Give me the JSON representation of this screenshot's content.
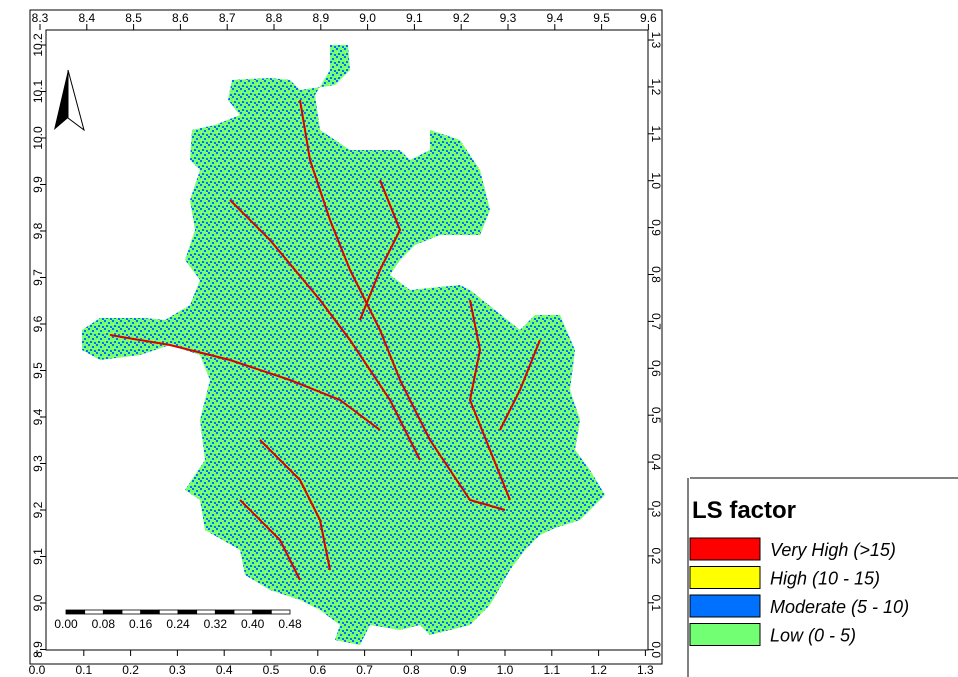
{
  "axes": {
    "top": [
      "8.3",
      "8.4",
      "8.5",
      "8.6",
      "8.7",
      "8.8",
      "8.9",
      "9.0",
      "9.1",
      "9.2",
      "9.3",
      "9.4",
      "9.5",
      "9.6"
    ],
    "bottom": [
      "0.0",
      "0.1",
      "0.2",
      "0.3",
      "0.4",
      "0.5",
      "0.6",
      "0.7",
      "0.8",
      "0.9",
      "1.0",
      "1.1",
      "1.2",
      "1.3"
    ],
    "left": [
      "10.2",
      "10.1",
      "10.0",
      "9.9",
      "9.8",
      "9.7",
      "9.6",
      "9.5",
      "9.4",
      "9.3",
      "9.2",
      "9.1",
      "9.0",
      "8.9"
    ],
    "right": [
      "1.3",
      "1.2",
      "1.1",
      "1.0",
      "0.9",
      "0.8",
      "0.7",
      "0.6",
      "0.5",
      "0.4",
      "0.3",
      "0.2",
      "0.1",
      "0.0"
    ]
  },
  "scale_bar": {
    "labels": [
      "0.00",
      "0.08",
      "0.16",
      "0.24",
      "0.32",
      "0.40",
      "0.48"
    ]
  },
  "legend": {
    "title": "LS factor",
    "items": [
      {
        "label": "Very High (>15)",
        "color": "#ff0000"
      },
      {
        "label": "High (10 - 15)",
        "color": "#ffff00"
      },
      {
        "label": "Moderate (5 - 10)",
        "color": "#0070ff"
      },
      {
        "label": "Low (0 - 5)",
        "color": "#73ff73"
      }
    ]
  }
}
